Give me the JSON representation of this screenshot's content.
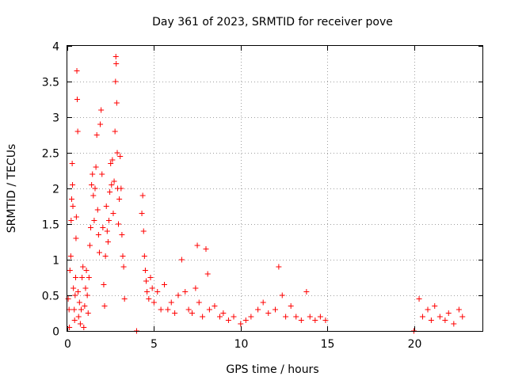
{
  "chart_data": {
    "type": "scatter",
    "title": "Day 361 of 2023, SRMTID for receiver pove",
    "xlabel": "GPS time / hours",
    "ylabel": "SRMTID / TECUs",
    "xlim": [
      0,
      24
    ],
    "ylim": [
      0,
      4
    ],
    "x_ticks": [
      0,
      5,
      10,
      15,
      20
    ],
    "y_ticks": [
      0,
      0.5,
      1,
      1.5,
      2,
      2.5,
      3,
      3.5,
      4
    ],
    "x_tick_labels": [
      "0",
      "5",
      "10",
      "15",
      "20"
    ],
    "y_tick_labels": [
      "0",
      "0.5",
      "1",
      "1.5",
      "2",
      "2.5",
      "3",
      "3.5",
      "4"
    ],
    "grid": true,
    "marker": "+",
    "color": "#ff0000",
    "series": [
      {
        "name": "SRMTID",
        "points": [
          [
            0.05,
            0.45
          ],
          [
            0.1,
            0.3
          ],
          [
            0.12,
            0.05
          ],
          [
            0.15,
            0.85
          ],
          [
            0.2,
            1.05
          ],
          [
            0.22,
            1.55
          ],
          [
            0.25,
            1.85
          ],
          [
            0.28,
            2.35
          ],
          [
            0.3,
            2.05
          ],
          [
            0.32,
            1.75
          ],
          [
            0.35,
            0.6
          ],
          [
            0.4,
            0.3
          ],
          [
            0.42,
            0.15
          ],
          [
            0.45,
            0.5
          ],
          [
            0.48,
            0.75
          ],
          [
            0.5,
            1.3
          ],
          [
            0.52,
            1.6
          ],
          [
            0.55,
            3.65
          ],
          [
            0.57,
            3.25
          ],
          [
            0.6,
            2.8
          ],
          [
            0.62,
            0.55
          ],
          [
            0.65,
            0.2
          ],
          [
            0.7,
            0.4
          ],
          [
            0.75,
            0.1
          ],
          [
            0.8,
            0.3
          ],
          [
            0.85,
            0.75
          ],
          [
            0.9,
            0.9
          ],
          [
            0.95,
            0.05
          ],
          [
            1.0,
            0.35
          ],
          [
            1.05,
            0.6
          ],
          [
            1.1,
            0.85
          ],
          [
            1.15,
            0.5
          ],
          [
            1.2,
            0.25
          ],
          [
            1.25,
            0.75
          ],
          [
            1.3,
            1.2
          ],
          [
            1.35,
            1.45
          ],
          [
            1.4,
            2.05
          ],
          [
            1.45,
            2.2
          ],
          [
            1.5,
            1.9
          ],
          [
            1.55,
            1.55
          ],
          [
            1.6,
            2.0
          ],
          [
            1.65,
            2.3
          ],
          [
            1.7,
            2.75
          ],
          [
            1.75,
            1.7
          ],
          [
            1.8,
            1.35
          ],
          [
            1.85,
            1.1
          ],
          [
            1.9,
            2.9
          ],
          [
            1.95,
            3.1
          ],
          [
            2.0,
            2.2
          ],
          [
            2.05,
            1.45
          ],
          [
            2.1,
            0.65
          ],
          [
            2.15,
            0.35
          ],
          [
            2.2,
            1.05
          ],
          [
            2.25,
            1.75
          ],
          [
            2.3,
            1.4
          ],
          [
            2.35,
            1.25
          ],
          [
            2.4,
            1.55
          ],
          [
            2.45,
            1.95
          ],
          [
            2.5,
            2.35
          ],
          [
            2.55,
            2.05
          ],
          [
            2.6,
            2.4
          ],
          [
            2.65,
            1.65
          ],
          [
            2.7,
            2.1
          ],
          [
            2.75,
            2.8
          ],
          [
            2.78,
            3.5
          ],
          [
            2.8,
            3.85
          ],
          [
            2.82,
            3.75
          ],
          [
            2.85,
            3.2
          ],
          [
            2.88,
            2.5
          ],
          [
            2.9,
            2.0
          ],
          [
            2.95,
            1.5
          ],
          [
            3.0,
            1.85
          ],
          [
            3.05,
            2.45
          ],
          [
            3.1,
            2.0
          ],
          [
            3.15,
            1.35
          ],
          [
            3.2,
            1.05
          ],
          [
            3.25,
            0.9
          ],
          [
            3.3,
            0.45
          ],
          [
            4.0,
            0.0
          ],
          [
            4.3,
            1.65
          ],
          [
            4.35,
            1.9
          ],
          [
            4.4,
            1.4
          ],
          [
            4.45,
            1.05
          ],
          [
            4.5,
            0.85
          ],
          [
            4.55,
            0.7
          ],
          [
            4.6,
            0.55
          ],
          [
            4.7,
            0.45
          ],
          [
            4.8,
            0.75
          ],
          [
            4.9,
            0.6
          ],
          [
            5.0,
            0.4
          ],
          [
            5.2,
            0.55
          ],
          [
            5.4,
            0.3
          ],
          [
            5.6,
            0.65
          ],
          [
            5.8,
            0.3
          ],
          [
            6.0,
            0.4
          ],
          [
            6.2,
            0.25
          ],
          [
            6.4,
            0.5
          ],
          [
            6.6,
            1.0
          ],
          [
            6.8,
            0.55
          ],
          [
            7.0,
            0.3
          ],
          [
            7.2,
            0.25
          ],
          [
            7.4,
            0.6
          ],
          [
            7.5,
            1.2
          ],
          [
            7.6,
            0.4
          ],
          [
            7.8,
            0.2
          ],
          [
            8.0,
            1.15
          ],
          [
            8.1,
            0.8
          ],
          [
            8.2,
            0.3
          ],
          [
            8.5,
            0.35
          ],
          [
            8.8,
            0.2
          ],
          [
            9.0,
            0.25
          ],
          [
            9.3,
            0.15
          ],
          [
            9.6,
            0.2
          ],
          [
            10.0,
            0.1
          ],
          [
            10.3,
            0.15
          ],
          [
            10.6,
            0.2
          ],
          [
            11.0,
            0.3
          ],
          [
            11.3,
            0.4
          ],
          [
            11.6,
            0.25
          ],
          [
            12.0,
            0.3
          ],
          [
            12.2,
            0.9
          ],
          [
            12.4,
            0.5
          ],
          [
            12.6,
            0.2
          ],
          [
            12.9,
            0.35
          ],
          [
            13.2,
            0.2
          ],
          [
            13.5,
            0.15
          ],
          [
            13.8,
            0.55
          ],
          [
            14.0,
            0.2
          ],
          [
            14.3,
            0.15
          ],
          [
            14.6,
            0.2
          ],
          [
            14.9,
            0.15
          ],
          [
            20.0,
            0.0
          ],
          [
            20.3,
            0.45
          ],
          [
            20.5,
            0.2
          ],
          [
            20.8,
            0.3
          ],
          [
            21.0,
            0.15
          ],
          [
            21.2,
            0.35
          ],
          [
            21.5,
            0.2
          ],
          [
            21.8,
            0.15
          ],
          [
            22.0,
            0.25
          ],
          [
            22.3,
            0.1
          ],
          [
            22.6,
            0.3
          ],
          [
            22.8,
            0.2
          ]
        ]
      }
    ]
  }
}
